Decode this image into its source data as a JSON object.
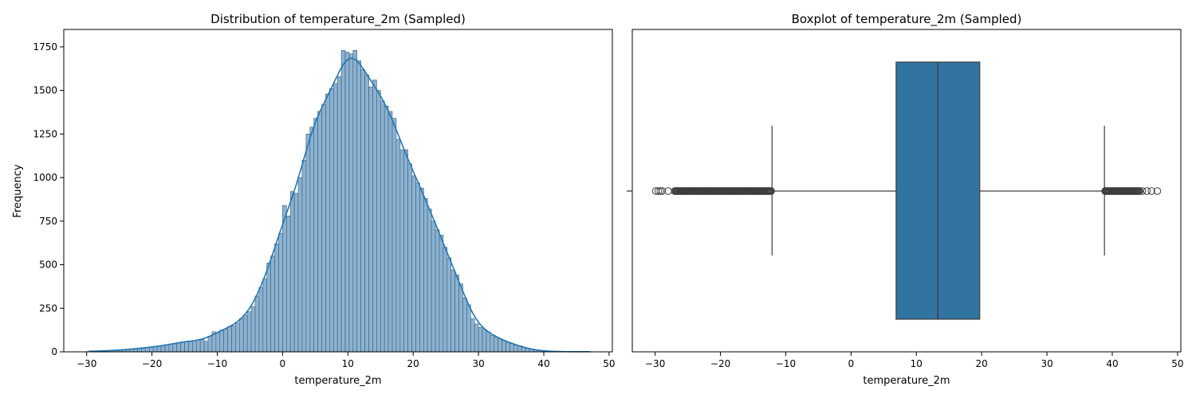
{
  "chart_data": [
    {
      "type": "bar",
      "title": "Distribution of temperature_2m (Sampled)",
      "xlabel": "temperature_2m",
      "ylabel": "Frequency",
      "xlim": [
        -33.5,
        50.5
      ],
      "ylim": [
        0,
        1850
      ],
      "xticks": [
        -30,
        -20,
        -10,
        0,
        10,
        20,
        30,
        40,
        50
      ],
      "xtick_labels": [
        "−30",
        "−20",
        "−10",
        "0",
        "10",
        "20",
        "30",
        "40",
        "50"
      ],
      "yticks": [
        0,
        250,
        500,
        750,
        1000,
        1250,
        1500,
        1750
      ],
      "ytick_labels": [
        "0",
        "250",
        "500",
        "750",
        "1000",
        "1250",
        "1500",
        "1750"
      ],
      "bin_start": -30,
      "bin_width": 0.6,
      "counts": [
        2,
        3,
        4,
        5,
        6,
        7,
        8,
        9,
        10,
        12,
        14,
        16,
        18,
        20,
        22,
        25,
        28,
        30,
        33,
        36,
        40,
        45,
        48,
        52,
        57,
        60,
        62,
        65,
        68,
        70,
        60,
        90,
        115,
        110,
        125,
        130,
        145,
        150,
        165,
        190,
        210,
        230,
        260,
        320,
        370,
        420,
        510,
        550,
        620,
        680,
        840,
        780,
        920,
        910,
        1000,
        1100,
        1250,
        1290,
        1340,
        1380,
        1420,
        1480,
        1510,
        1540,
        1580,
        1730,
        1720,
        1710,
        1730,
        1670,
        1620,
        1590,
        1520,
        1560,
        1500,
        1440,
        1410,
        1380,
        1340,
        1220,
        1160,
        1160,
        1080,
        1010,
        970,
        940,
        880,
        820,
        750,
        700,
        670,
        600,
        540,
        470,
        440,
        390,
        310,
        270,
        190,
        160,
        140,
        130,
        115,
        95,
        85,
        75,
        65,
        55,
        48,
        40,
        35,
        25,
        20,
        15,
        10,
        7,
        5,
        4,
        3,
        2,
        1,
        1,
        1,
        1,
        1,
        1,
        1,
        1,
        1
      ],
      "kde": true,
      "bar_color": "#8bb2d2",
      "bar_edge_color": "#3f5a70",
      "kde_color": "#1f77b4"
    },
    {
      "type": "box",
      "title": "Boxplot of temperature_2m (Sampled)",
      "xlabel": "temperature_2m",
      "xlim": [
        -33.5,
        50.5
      ],
      "xticks": [
        -30,
        -20,
        -10,
        0,
        10,
        20,
        30,
        40,
        50
      ],
      "xtick_labels": [
        "−30",
        "−20",
        "−10",
        "0",
        "10",
        "20",
        "30",
        "40",
        "50"
      ],
      "q1": 6.9,
      "median": 13.3,
      "q3": 19.7,
      "whisker_low": -12.1,
      "whisker_high": 38.8,
      "outliers_low_range": [
        -27.0,
        -12.2
      ],
      "outliers_low_extra": [
        -29.9,
        -29.5,
        -29.2,
        -28.9,
        -28.0
      ],
      "outliers_high_range": [
        38.9,
        44.2
      ],
      "outliers_high_extra": [
        44.6,
        45.3,
        46.0,
        46.9
      ],
      "box_color": "#3274a1",
      "line_color": "#3d3d3d"
    }
  ]
}
